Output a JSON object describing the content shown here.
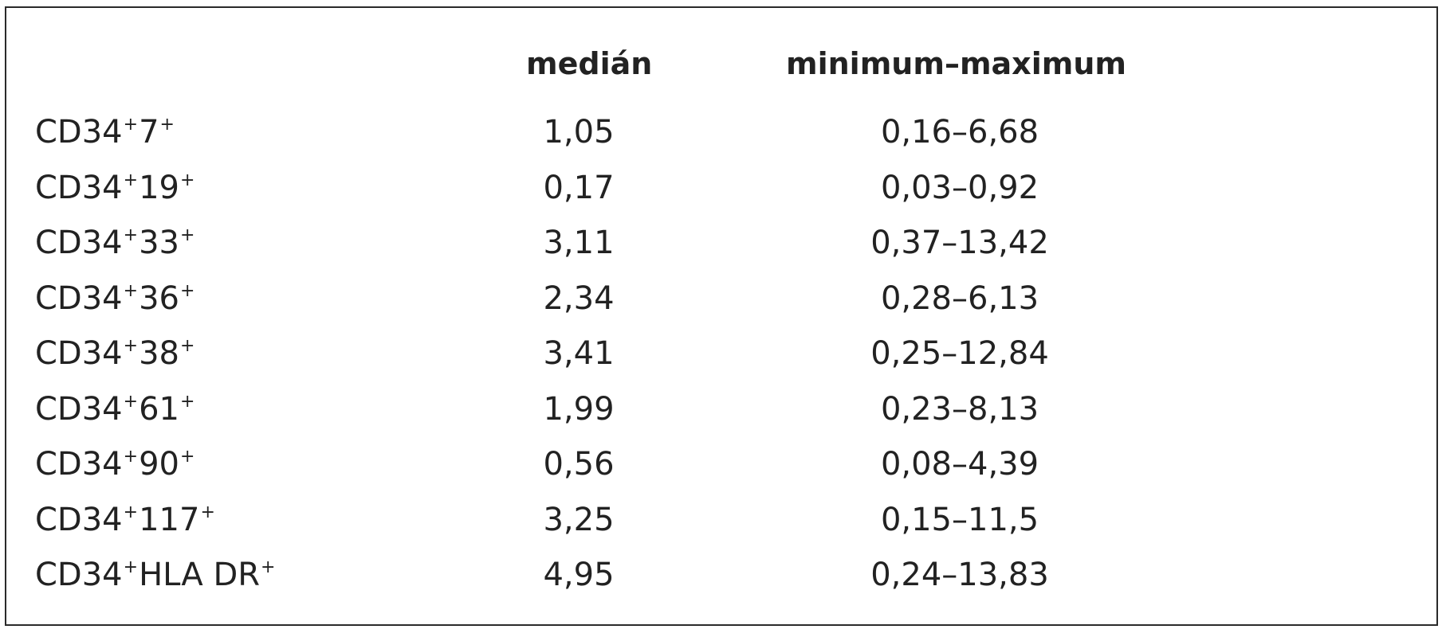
{
  "table": {
    "headers": {
      "median": "medián",
      "range": "minimum–maximum"
    },
    "rows": [
      {
        "prefix": "CD34",
        "mid": "7",
        "median": "1,05",
        "range": "0,16–6,68"
      },
      {
        "prefix": "CD34",
        "mid": "19",
        "median": "0,17",
        "range": "0,03–0,92"
      },
      {
        "prefix": "CD34",
        "mid": "33",
        "median": "3,11",
        "range": "0,37–13,42"
      },
      {
        "prefix": "CD34",
        "mid": "36",
        "median": "2,34",
        "range": "0,28–6,13"
      },
      {
        "prefix": "CD34",
        "mid": "38",
        "median": "3,41",
        "range": "0,25–12,84"
      },
      {
        "prefix": "CD34",
        "mid": "61",
        "median": "1,99",
        "range": "0,23–8,13"
      },
      {
        "prefix": "CD34",
        "mid": "90",
        "median": "0,56",
        "range": "0,08–4,39"
      },
      {
        "prefix": "CD34",
        "mid": "117",
        "median": "3,25",
        "range": "0,15–11,5"
      },
      {
        "prefix": "CD34",
        "mid": "HLA DR",
        "median": "4,95",
        "range": "0,24–13,83"
      }
    ]
  }
}
